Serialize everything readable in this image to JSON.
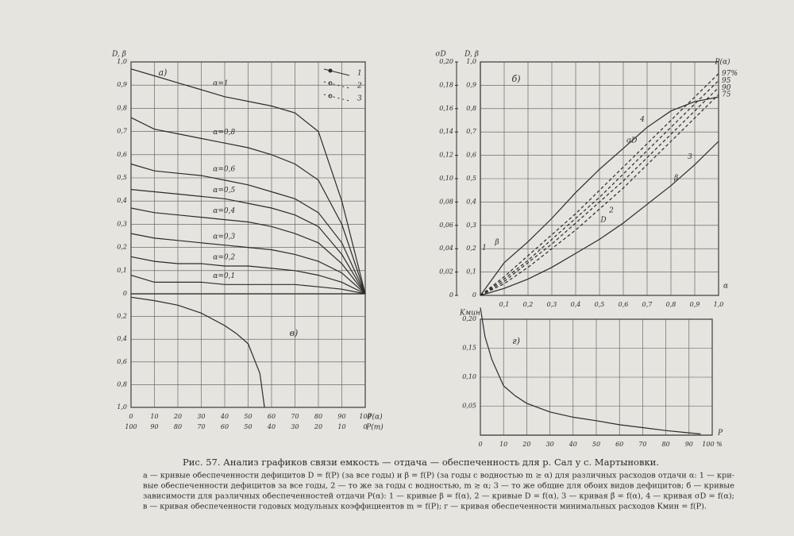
{
  "chart_data": [
    {
      "type": "line",
      "panel_label": "а)",
      "y_label": "D, β",
      "color": "#2b2b2b",
      "grid": true,
      "show_xtick_labels": false,
      "xlim": [
        0,
        100
      ],
      "ylim": [
        0,
        1.0
      ],
      "xticks": [
        0,
        10,
        20,
        30,
        40,
        50,
        60,
        70,
        80,
        90,
        100
      ],
      "yticks": [
        0,
        {
          "value": 0.1,
          "label": "0,1"
        },
        {
          "value": 0.2,
          "label": "0,2"
        },
        {
          "value": 0.3,
          "label": "0,3"
        },
        {
          "value": 0.4,
          "label": "0,4"
        },
        {
          "value": 0.5,
          "label": "0,5"
        },
        {
          "value": 0.6,
          "label": "0,6"
        },
        {
          "value": 0.7,
          "label": "0,7"
        },
        {
          "value": 0.8,
          "label": "0,8"
        },
        {
          "value": 0.9,
          "label": "0,9"
        },
        {
          "value": 1.0,
          "label": "1,0"
        }
      ],
      "legend_items": [
        "1",
        "2",
        "3"
      ],
      "x": [
        0,
        10,
        20,
        30,
        40,
        50,
        60,
        70,
        80,
        90,
        100
      ],
      "series": [
        {
          "name": "α=1",
          "values": [
            0.97,
            0.94,
            0.91,
            0.88,
            0.85,
            0.83,
            0.81,
            0.78,
            0.7,
            0.4,
            0
          ]
        },
        {
          "name": "α=0,8",
          "values": [
            0.76,
            0.71,
            0.69,
            0.67,
            0.65,
            0.63,
            0.6,
            0.56,
            0.49,
            0.3,
            0
          ]
        },
        {
          "name": "α=0,6",
          "values": [
            0.56,
            0.53,
            0.52,
            0.51,
            0.49,
            0.47,
            0.44,
            0.41,
            0.35,
            0.22,
            0
          ]
        },
        {
          "name": "α=0,5",
          "values": [
            0.45,
            0.44,
            0.43,
            0.42,
            0.41,
            0.39,
            0.37,
            0.34,
            0.29,
            0.17,
            0
          ]
        },
        {
          "name": "α=0,4",
          "values": [
            0.37,
            0.35,
            0.34,
            0.33,
            0.32,
            0.31,
            0.29,
            0.26,
            0.22,
            0.13,
            0
          ]
        },
        {
          "name": "α=0,3",
          "values": [
            0.26,
            0.24,
            0.23,
            0.22,
            0.21,
            0.2,
            0.19,
            0.17,
            0.14,
            0.09,
            0
          ]
        },
        {
          "name": "α=0,2",
          "values": [
            0.16,
            0.14,
            0.13,
            0.13,
            0.12,
            0.12,
            0.11,
            0.1,
            0.08,
            0.05,
            0
          ]
        },
        {
          "name": "α=0,1",
          "values": [
            0.08,
            0.05,
            0.05,
            0.05,
            0.04,
            0.04,
            0.04,
            0.04,
            0.03,
            0.02,
            0
          ]
        }
      ]
    },
    {
      "type": "line",
      "panel_label": "в)",
      "x_label": "P(α)",
      "x2_label": "P(m)",
      "color": "#2b2b2b",
      "grid": true,
      "y_inverted": true,
      "show_xtick_labels": true,
      "xlim": [
        0,
        100
      ],
      "ylim": [
        0,
        1.0
      ],
      "x2lim": [
        100,
        0
      ],
      "xticks": [
        0,
        10,
        20,
        30,
        40,
        50,
        60,
        70,
        80,
        90,
        100
      ],
      "x2ticks": [
        100,
        90,
        80,
        70,
        60,
        50,
        40,
        30,
        20,
        10,
        0
      ],
      "yticks": [
        {
          "value": 0.2,
          "label": "0,2"
        },
        {
          "value": 0.4,
          "label": "0,4"
        },
        {
          "value": 0.6,
          "label": "0,6"
        },
        {
          "value": 0.8,
          "label": "0,8"
        },
        {
          "value": 1.0,
          "label": "1,0"
        }
      ],
      "x": [
        0,
        10,
        20,
        30,
        40,
        45,
        50,
        55,
        57
      ],
      "series": [
        {
          "values": [
            0.03,
            0.06,
            0.1,
            0.17,
            0.28,
            0.35,
            0.44,
            0.7,
            1.0
          ]
        }
      ]
    },
    {
      "type": "line",
      "panel_label": "б)",
      "y_label": "D, β",
      "y2_label": "σD",
      "x_label": "α",
      "legend_title": "P(α)",
      "color": "#2b2b2b",
      "grid": true,
      "show_xtick_labels": true,
      "xlim": [
        0,
        1.0
      ],
      "ylim": [
        0,
        1.0
      ],
      "y2lim": [
        0,
        0.2
      ],
      "xticks": [
        {
          "value": 0.1,
          "label": "0,1"
        },
        {
          "value": 0.2,
          "label": "0,2"
        },
        {
          "value": 0.3,
          "label": "0,3"
        },
        {
          "value": 0.4,
          "label": "0,4"
        },
        {
          "value": 0.5,
          "label": "0,5"
        },
        {
          "value": 0.6,
          "label": "0,6"
        },
        {
          "value": 0.7,
          "label": "0,7"
        },
        {
          "value": 0.8,
          "label": "0,8"
        },
        {
          "value": 0.9,
          "label": "0,9"
        },
        {
          "value": 1.0,
          "label": "1,0"
        }
      ],
      "yticks": [
        0,
        {
          "value": 0.1,
          "label": "0,1"
        },
        {
          "value": 0.2,
          "label": "0,2"
        },
        {
          "value": 0.3,
          "label": "0,3"
        },
        {
          "value": 0.4,
          "label": "0,4"
        },
        {
          "value": 0.5,
          "label": "0,5"
        },
        {
          "value": 0.6,
          "label": "0,6"
        },
        {
          "value": 0.7,
          "label": "0,7"
        },
        {
          "value": 0.8,
          "label": "0,8"
        },
        {
          "value": 0.9,
          "label": "0,9"
        },
        {
          "value": 1.0,
          "label": "1,0"
        }
      ],
      "y2ticks": [
        0,
        {
          "value": 0.02,
          "label": "0,02"
        },
        {
          "value": 0.04,
          "label": "0,04"
        },
        {
          "value": 0.06,
          "label": "0,06"
        },
        {
          "value": 0.08,
          "label": "0,08"
        },
        {
          "value": 0.1,
          "label": "0,10"
        },
        {
          "value": 0.12,
          "label": "0,12"
        },
        {
          "value": 0.14,
          "label": "0,14"
        },
        {
          "value": 0.16,
          "label": "0,16"
        },
        {
          "value": 0.18,
          "label": "0,18"
        },
        {
          "value": 0.2,
          "label": "0,20"
        }
      ],
      "annotations": [
        "1",
        "β",
        "2",
        "D"
      ],
      "x": [
        0,
        0.1,
        0.2,
        0.3,
        0.4,
        0.5,
        0.6,
        0.7,
        0.8,
        0.9,
        1.0
      ],
      "series": [
        {
          "name": "σD",
          "number": "4",
          "axis": "y2",
          "values": [
            0,
            0.028,
            0.046,
            0.066,
            0.088,
            0.108,
            0.126,
            0.144,
            0.158,
            0.166,
            0.17
          ]
        },
        {
          "name": "97%",
          "dashed": true,
          "values": [
            0,
            0.08,
            0.17,
            0.26,
            0.35,
            0.45,
            0.55,
            0.65,
            0.75,
            0.85,
            0.95
          ]
        },
        {
          "name": "95",
          "dashed": true,
          "values": [
            0,
            0.07,
            0.15,
            0.24,
            0.33,
            0.42,
            0.52,
            0.62,
            0.72,
            0.82,
            0.92
          ]
        },
        {
          "name": "90",
          "dashed": true,
          "values": [
            0,
            0.06,
            0.14,
            0.22,
            0.31,
            0.4,
            0.49,
            0.59,
            0.69,
            0.79,
            0.89
          ]
        },
        {
          "name": "75",
          "dashed": true,
          "values": [
            0,
            0.05,
            0.12,
            0.2,
            0.28,
            0.37,
            0.46,
            0.56,
            0.66,
            0.76,
            0.86
          ]
        },
        {
          "name": "β",
          "number": "3",
          "values": [
            0,
            0.03,
            0.07,
            0.12,
            0.18,
            0.24,
            0.31,
            0.39,
            0.47,
            0.56,
            0.66
          ]
        }
      ]
    },
    {
      "type": "line",
      "panel_label": "г)",
      "y_label": "Kмин",
      "x_label": "P",
      "color": "#2b2b2b",
      "grid": true,
      "show_xtick_labels": true,
      "xlim": [
        0,
        100
      ],
      "ylim": [
        0,
        0.2
      ],
      "xticks": [
        0,
        10,
        20,
        30,
        40,
        50,
        60,
        70,
        80,
        90,
        {
          "value": 100,
          "label": "100 %"
        }
      ],
      "yticks": [
        {
          "value": 0.05,
          "label": "0,05"
        },
        {
          "value": 0.1,
          "label": "0,10"
        },
        {
          "value": 0.15,
          "label": "0,15"
        },
        {
          "value": 0.2,
          "label": "0,20"
        }
      ],
      "x": [
        0,
        2,
        5,
        10,
        15,
        20,
        30,
        40,
        50,
        60,
        70,
        80,
        90,
        95
      ],
      "series": [
        {
          "values": [
            0.22,
            0.17,
            0.13,
            0.085,
            0.068,
            0.055,
            0.04,
            0.031,
            0.025,
            0.018,
            0.013,
            0.008,
            0.004,
            0.002
          ]
        }
      ]
    }
  ],
  "caption": {
    "title": "Рис. 57. Анализ графиков связи емкость — отдача — обеспеченность для р. Сал у с. Мартыновки.",
    "lines": [
      "а — кривые обеспеченности дефицитов D = f(P) (за все годы) и β = f(P) (за годы с водностью m ≥ α) для различных расходов отдачи α: 1 — кри-",
      "вые обеспеченности дефицитов за все годы, 2 — то же за годы с водностью, m ≥ α; 3 — то же общие для обоих видов дефицитов; б — кривые",
      "зависимости для различных обеспеченностей отдачи P(α): 1 — кривые β = f(α), 2 — кривые D = f(α), 3 — кривая β̄ = f(α), 4 — кривая σD = f(α);",
      "в — кривая обеспеченности годовых модульных коэффициентов m = f(P); г — кривая обеспеченности минимальных расходов Kмин = f(P)."
    ]
  }
}
